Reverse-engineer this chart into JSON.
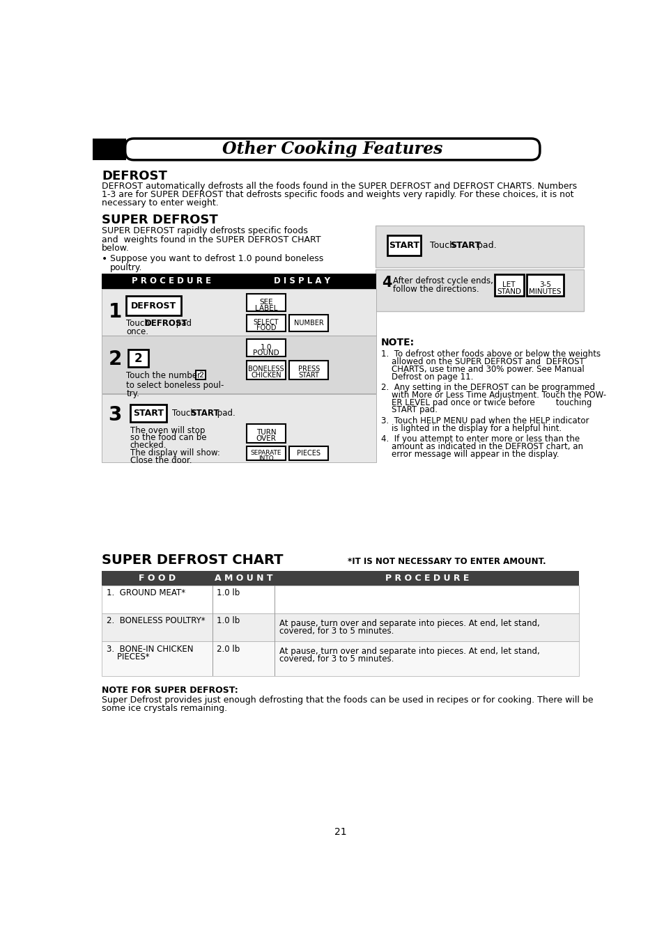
{
  "page_title": "Other Cooking Features",
  "section1_title": "DEFROST",
  "section1_body": "DEFROST automatically defrosts all the foods found in the SUPER DEFROST and DEFROST CHARTS. Numbers\n1-3 are for SUPER DEFROST that defrosts specific foods and weights very rapidly. For these choices, it is not\nnecessary to enter weight.",
  "section2_title": "SUPER DEFROST",
  "section2_intro": "SUPER DEFROST rapidly defrosts specific foods\nand  weights found in the SUPER DEFROST CHART\nbelow.",
  "section2_bullet": "Suppose you want to defrost 1.0 pound boneless\npoultry.",
  "proc_header_left": "P R O C E D U R E",
  "proc_header_right": "D I S P L A Y",
  "note_title": "NOTE:",
  "note1": "1.  To defrost other foods above or below the weights\n    allowed on the SUPER DEFROST and  DEFROST\n    CHARTS, use time and 30% power. See Manual\n    Defrost on page 11.",
  "note2": "2.  Any setting in the DEFROST can be programmed\n    with More or Less Time Adjustment. Touch the POW-\n    ER LEVEL pad once or twice before        touching\n    START pad.",
  "note3": "3.  Touch HELP MENU pad when the HELP indicator\n    is lighted in the display for a helpful hint.",
  "note4": "4.  If you attempt to enter more or less than the\n    amount as indicated in the DEFROST chart, an\n    error message will appear in the display.",
  "chart_title": "SUPER DEFROST CHART",
  "chart_note": "*IT IS NOT NECESSARY TO ENTER AMOUNT.",
  "chart_col1": "F O O D",
  "chart_col2": "A M O U N T",
  "chart_col3": "P R O C E D U R E",
  "chart_rows": [
    [
      "1.  GROUND MEAT*",
      "1.0 lb",
      ""
    ],
    [
      "2.  BONELESS POULTRY*",
      "1.0 lb",
      "At pause, turn over and separate into pieces. At end, let stand,\ncovered, for 3 to 5 minutes."
    ],
    [
      "3.  BONE-IN CHICKEN\n    PIECES*",
      "2.0 lb",
      "At pause, turn over and separate into pieces. At end, let stand,\ncovered, for 3 to 5 minutes."
    ]
  ],
  "note_footer_title": "NOTE FOR SUPER DEFROST:",
  "note_footer_text": "Super Defrost provides just enough defrosting that the foods can be used in recipes or for cooking. There will be\nsome ice crystals remaining.",
  "page_num": "21",
  "bg_color": "#ffffff"
}
